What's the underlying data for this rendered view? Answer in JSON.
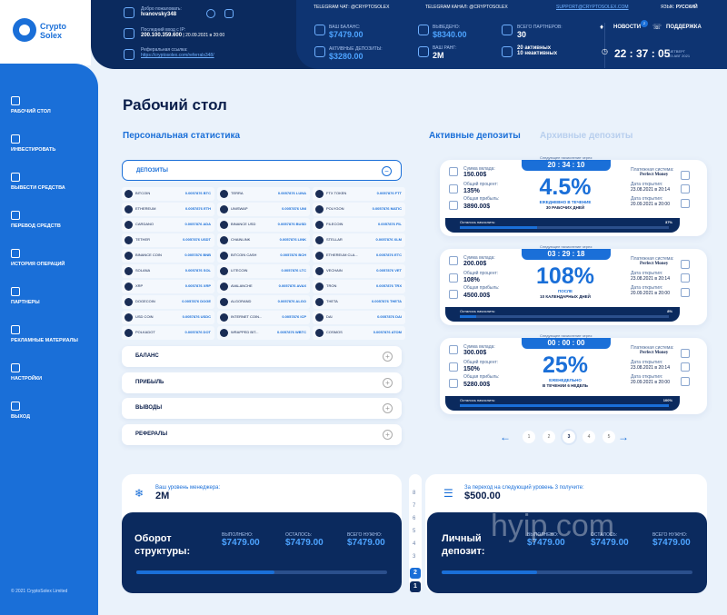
{
  "brand": {
    "line1": "Crypto",
    "line2": "Solex"
  },
  "header": {
    "welcome_lbl": "Добро пожаловать:",
    "user": "Ivanovsky348",
    "lastlogin_lbl": "Последний вход с IP:",
    "ip": "200.100.359.600",
    "lastlogin_date": "20.09.2021 в 20:00",
    "ref_lbl": "Реферальная ссылка:",
    "ref_link": "https://cryptosolex.com/referrals348/",
    "tg_chat": "TELEGRAM ЧАТ: @CRYPTOSOLEX",
    "tg_channel": "TELEGRAM КАНАЛ: @CRYPTOSOLEX",
    "support_mail": "SUPPORT@CRYPTOSOLEX.COM",
    "lang_lbl": "ЯЗЫК:",
    "lang": "РУССКИЙ",
    "balance_lbl": "ВАШ БАЛАНС:",
    "balance": "$7479.00",
    "withdrawn_lbl": "ВЫВЕДЕНО:",
    "withdrawn": "$8340.00",
    "partners_lbl": "ВСЕГО ПАРТНЕРОВ:",
    "partners": "30",
    "active_lbl": "АКТИВНЫЕ ДЕПОЗИТЫ:",
    "active": "$3280.00",
    "rank_lbl": "ВАШ РАНГ:",
    "rank": "2M",
    "active_cnt": "20 активных",
    "inactive_cnt": "10 неактивных",
    "news": "НОВОСТИ",
    "news_badge": "2",
    "support": "ПОДДЕРЖКА",
    "time": "22 : 37 : 05",
    "day": "ЧЕТВЕРГ",
    "date": "23 АВГ 2021"
  },
  "nav": [
    {
      "label": "РАБОЧИЙ СТОЛ",
      "icon": "desktop-icon"
    },
    {
      "label": "ИНВЕСТИРОВАТЬ",
      "icon": "invest-icon"
    },
    {
      "label": "ВЫВЕСТИ СРЕДСТВА",
      "icon": "wallet-icon"
    },
    {
      "label": "ПЕРЕВОД СРЕДСТВ",
      "icon": "transfer-icon"
    },
    {
      "label": "ИСТОРИЯ ОПЕРАЦИЙ",
      "icon": "history-icon"
    },
    {
      "label": "ПАРТНЕРЫ",
      "icon": "partners-icon"
    },
    {
      "label": "РЕКЛАМНЫЕ МАТЕРИАЛЫ",
      "icon": "promo-icon"
    },
    {
      "label": "НАСТРОЙКИ",
      "icon": "settings-icon"
    },
    {
      "label": "ВЫХОД",
      "icon": "logout-icon"
    }
  ],
  "copyright": "© 2021 CryptoSolex Limited",
  "page_title": "Рабочий стол",
  "stats_title": "Персональная статистика",
  "accordion": {
    "deposits": "ДЕПОЗИТЫ",
    "balance": "БАЛАНС",
    "profit": "ПРИБЫЛЬ",
    "withdrawals": "ВЫВОДЫ",
    "referrals": "РЕФЕРАЛЫ"
  },
  "coins": [
    [
      "BITCOIN",
      "0.0057876 BTC"
    ],
    [
      "TERRA",
      "0.0057876 LUNA"
    ],
    [
      "FTX TOKEN",
      "0.0057876 FTT"
    ],
    [
      "ETHEREUM",
      "0.0057876 ETH"
    ],
    [
      "UNISWAP",
      "0.0057876 UNI"
    ],
    [
      "POLYGON",
      "0.0057876 MATIC"
    ],
    [
      "CARDANO",
      "0.0057876 ADA"
    ],
    [
      "BINANCE USD",
      "0.0057876 BUSD"
    ],
    [
      "FILECOIN",
      "0.0057876 FIL"
    ],
    [
      "TETHER",
      "0.0057876 USDT"
    ],
    [
      "CHAINLINK",
      "0.0057876 LINK"
    ],
    [
      "STELLAR",
      "0.0057876 XLM"
    ],
    [
      "BINANCE COIN",
      "0.0057876 BNB"
    ],
    [
      "BITCOIN CASH",
      "0.0057876 BCH"
    ],
    [
      "ETHEREUM CLA...",
      "0.0057876 ETC"
    ],
    [
      "SOLANA",
      "0.0057876 SOL"
    ],
    [
      "LITECOIN",
      "0.0057876 LTC"
    ],
    [
      "VECHAIN",
      "0.0057876 VET"
    ],
    [
      "XRP",
      "0.0057876 XRP"
    ],
    [
      "AVALANCHE",
      "0.0057876 AVAX"
    ],
    [
      "TRON",
      "0.0057876 TRX"
    ],
    [
      "DOGECOIN",
      "0.0057876 DOGE"
    ],
    [
      "ALGORAND",
      "0.0057876 ALGO"
    ],
    [
      "THETA",
      "0.0057876 THETA"
    ],
    [
      "USD COIN",
      "0.0057876 USDC"
    ],
    [
      "INTERNET COIN...",
      "0.0057876 ICP"
    ],
    [
      "DAI",
      "0.0057876 DAI"
    ],
    [
      "POLKADOT",
      "0.0057876 DOT"
    ],
    [
      "WRAPPED BIT...",
      "0.0057876 WBTC"
    ],
    [
      "COSMOS",
      "0.0057876 ATOM"
    ]
  ],
  "tabs": {
    "active": "Активные депозиты",
    "archive": "Архивные депозиты"
  },
  "cards": [
    {
      "amount_lbl": "Сумма вклада:",
      "amount": "150.00$",
      "pct_lbl": "Общий процент:",
      "total_pct": "135%",
      "profit_lbl": "Общая прибыль:",
      "profit": "3890.00$",
      "next_lbl": "Следующее начисление через:",
      "timer": "20 : 34 : 10",
      "pct": "4.5%",
      "desc1": "ЕЖЕДНЕВНО В ТЕЧЕНИЕ",
      "desc2": "30 РАБОЧИХ ДНЕЙ",
      "ps_lbl": "Платежная система:",
      "ps": "Perfect Money",
      "open_lbl": "Дата открытия:",
      "open": "23.08.2021 в 20:14",
      "close_lbl": "Дата открытия:",
      "close": "20.09.2021 в 20:00",
      "left_lbl": "Осталось начислить:",
      "left_pct": "37%",
      "fill": 0.37
    },
    {
      "amount_lbl": "Сумма вклада:",
      "amount": "200.00$",
      "pct_lbl": "Общий процент:",
      "total_pct": "108%",
      "profit_lbl": "Общая прибыль:",
      "profit": "4500.00$",
      "next_lbl": "Следующее начисление через:",
      "timer": "03 : 29 : 18",
      "pct": "108%",
      "desc1": "ПОСЛЕ",
      "desc2": "10 КАЛЕНДАРНЫХ ДНЕЙ",
      "ps_lbl": "Платежная система:",
      "ps": "Perfect Money",
      "open_lbl": "Дата открытия:",
      "open": "23.08.2021 в 20:14",
      "close_lbl": "Дата открытия:",
      "close": "20.09.2021 в 20:00",
      "left_lbl": "Осталось начислить:",
      "left_pct": "8%",
      "fill": 0.08
    },
    {
      "amount_lbl": "Сумма вклада:",
      "amount": "300.00$",
      "pct_lbl": "Общий процент:",
      "total_pct": "150%",
      "profit_lbl": "Общая прибыль:",
      "profit": "5280.00$",
      "next_lbl": "Следующее начисление через:",
      "timer": "00 : 00 : 00",
      "pct": "25%",
      "desc1": "ЕЖЕНЕДЕЛЬНО",
      "desc2": "В ТЕЧЕНИИ 6 НЕДЕЛЬ",
      "ps_lbl": "Платежная система:",
      "ps": "Perfect Money",
      "open_lbl": "Дата открытия:",
      "open": "23.08.2021 в 20:14",
      "close_lbl": "Дата открытия:",
      "close": "20.09.2021 в 20:00",
      "left_lbl": "Осталось начислить:",
      "left_pct": "100%",
      "fill": 1.0
    }
  ],
  "pager": [
    "1",
    "2",
    "3",
    "4",
    "5"
  ],
  "manager": {
    "lbl": "Ваш уровень менеджера:",
    "val": "2M",
    "turn1": "Оборот",
    "turn2": "структуры:",
    "done_lbl": "ВЫПОЛНЕНО:",
    "done": "$7479.00",
    "left_lbl": "ОСТАЛОСЬ:",
    "left": "$7479.00",
    "need_lbl": "ВСЕГО НУЖНО:",
    "need": "$7479.00",
    "fill": 0.55
  },
  "next_level": {
    "lbl": "За переход на следующий уровень 3 получите:",
    "val": "$500.00",
    "dep1": "Личный",
    "dep2": "депозит:",
    "done_lbl": "ВЫПОЛНЕНО:",
    "done": "$7479.00",
    "left_lbl": "ОСТАЛОСЬ:",
    "left": "$7479.00",
    "need_lbl": "ВСЕГО НУЖНО:",
    "need": "$7479.00",
    "fill": 0.38
  },
  "levels": [
    "8",
    "7",
    "6",
    "5",
    "4",
    "3",
    "2",
    "1"
  ],
  "watermark": "hyip.com"
}
